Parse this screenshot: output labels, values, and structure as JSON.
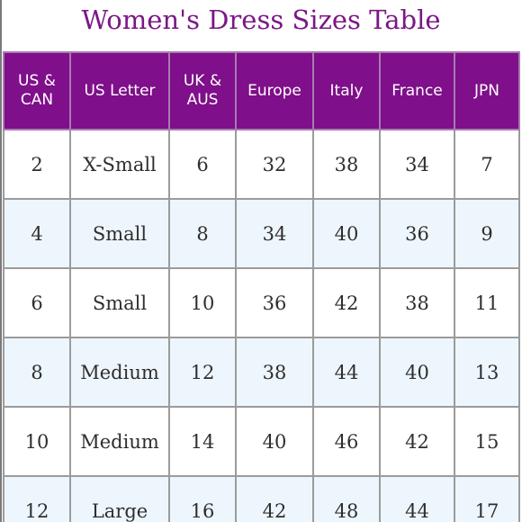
{
  "title": "Women's Dress Sizes Table",
  "table": {
    "headers": [
      [
        "US &",
        "CAN"
      ],
      [
        "US Letter"
      ],
      [
        "UK &",
        "AUS"
      ],
      [
        "Europe"
      ],
      [
        "Italy"
      ],
      [
        "France"
      ],
      [
        "JPN"
      ]
    ],
    "rows": [
      [
        "2",
        "X-Small",
        "6",
        "32",
        "38",
        "34",
        "7"
      ],
      [
        "4",
        "Small",
        "8",
        "34",
        "40",
        "36",
        "9"
      ],
      [
        "6",
        "Small",
        "10",
        "36",
        "42",
        "38",
        "11"
      ],
      [
        "8",
        "Medium",
        "12",
        "38",
        "44",
        "40",
        "13"
      ],
      [
        "10",
        "Medium",
        "14",
        "40",
        "46",
        "42",
        "15"
      ],
      [
        "12",
        "Large",
        "16",
        "42",
        "48",
        "44",
        "17"
      ]
    ]
  },
  "colors": {
    "title": "#7b1787",
    "header_bg": "#7f0f8a",
    "header_text": "#ffffff",
    "row_alt_bg": "#eef6fd",
    "grid": "#9b9b9b"
  }
}
